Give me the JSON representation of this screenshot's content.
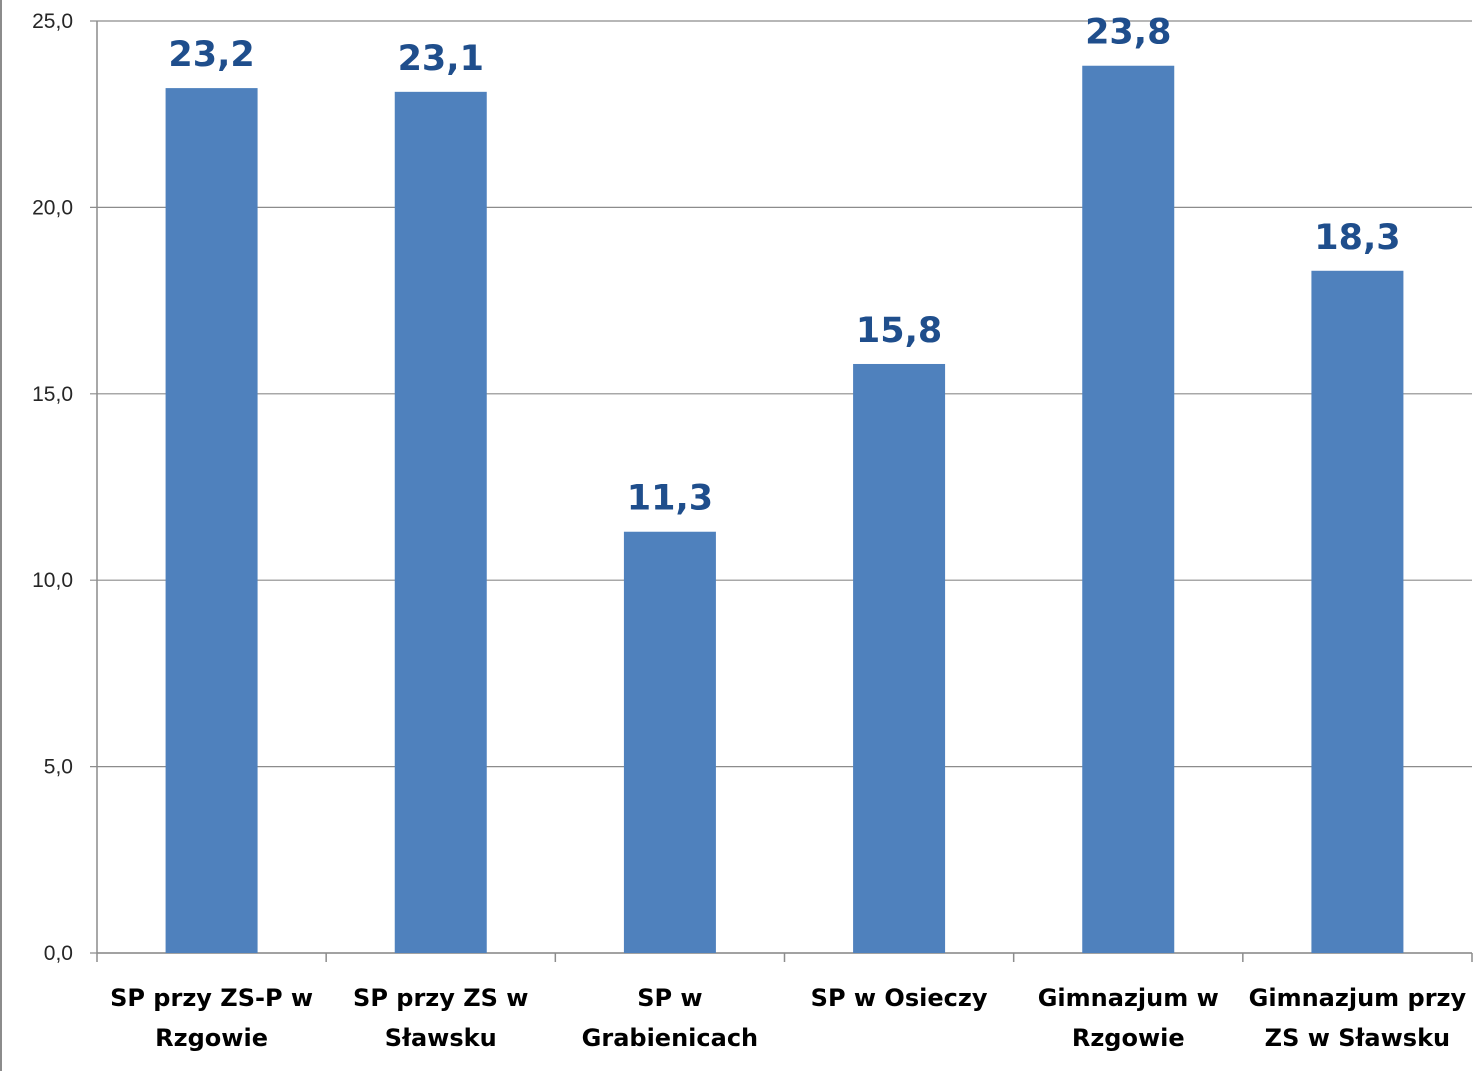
{
  "chart_data": {
    "type": "bar",
    "categories": [
      [
        "SP przy ZS-P w",
        "Rzgowie"
      ],
      [
        "SP przy ZS w",
        "Sławsku"
      ],
      [
        "SP w",
        "Grabienicach"
      ],
      [
        "SP w Osieczy"
      ],
      [
        "Gimnazjum w",
        "Rzgowie"
      ],
      [
        "Gimnazjum przy",
        "ZS w Sławsku"
      ]
    ],
    "values": [
      23.2,
      23.1,
      11.3,
      15.8,
      23.8,
      18.3
    ],
    "data_labels": [
      "23,2",
      "23,1",
      "11,3",
      "15,8",
      "23,8",
      "18,3"
    ],
    "y_ticks": [
      "0,0",
      "5,0",
      "10,0",
      "15,0",
      "20,0",
      "25,0"
    ],
    "ylim": [
      0,
      25
    ],
    "grid": true,
    "legend": "none",
    "colors": {
      "bar": "#4f81bd",
      "data_label": "#1f4e8c",
      "grid": "#8c8c8c",
      "axis": "#8c8c8c"
    }
  }
}
